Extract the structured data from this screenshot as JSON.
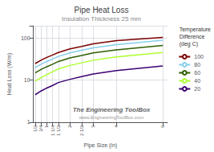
{
  "chart_data": {
    "type": "line",
    "title": "Pipe Heat Loss",
    "subtitle": "Insulation Thickness 25 mm",
    "xlabel": "Pipe Size (in)",
    "ylabel": "Heat Loss (W/m)",
    "legend_title": "Temperature\nDifference\n(deg C)",
    "annotations": [
      "The Engineering ToolBox",
      "www.EngineeringToolBox.com"
    ],
    "x": [
      0.5,
      0.75,
      1.0,
      1.25,
      1.5,
      2.0,
      2.5,
      3.0,
      4.0,
      6.0
    ],
    "series": [
      {
        "name": "100",
        "color": "#7B0000",
        "values": [
          25,
          30,
          35,
          40,
          46,
          56,
          64,
          74,
          88,
          105
        ]
      },
      {
        "name": "80",
        "color": "#87CEEB",
        "values": [
          20,
          24,
          28,
          32,
          37,
          45,
          52,
          59,
          71,
          90
        ]
      },
      {
        "name": "60",
        "color": "#2E5E00",
        "values": [
          15,
          18,
          21,
          24,
          28,
          34,
          39,
          45,
          53,
          68
        ]
      },
      {
        "name": "40",
        "color": "#ADFF2F",
        "values": [
          9.5,
          11.5,
          13.5,
          16,
          18.5,
          22.5,
          26,
          30,
          36,
          46
        ]
      },
      {
        "name": "20",
        "color": "#3B0072",
        "values": [
          4.5,
          5.5,
          6.5,
          7.5,
          8.8,
          10.5,
          12.2,
          14,
          17,
          22
        ]
      }
    ],
    "xlim": [
      0.42,
      6.2
    ],
    "xticks": [
      {
        "value": 0.5,
        "label": "1/2"
      },
      {
        "value": 0.75,
        "label": "3/4"
      },
      1,
      {
        "value": 1.25,
        "label": "1 1/4"
      },
      {
        "value": 1.5,
        "label": "1 1/2"
      },
      2,
      {
        "value": 2.5,
        "label": "2 1/2"
      },
      3,
      4,
      6
    ],
    "ylim": [
      1,
      200
    ],
    "yticks": [
      1,
      10,
      100
    ],
    "log": "y",
    "grid": true,
    "legend": "right"
  }
}
